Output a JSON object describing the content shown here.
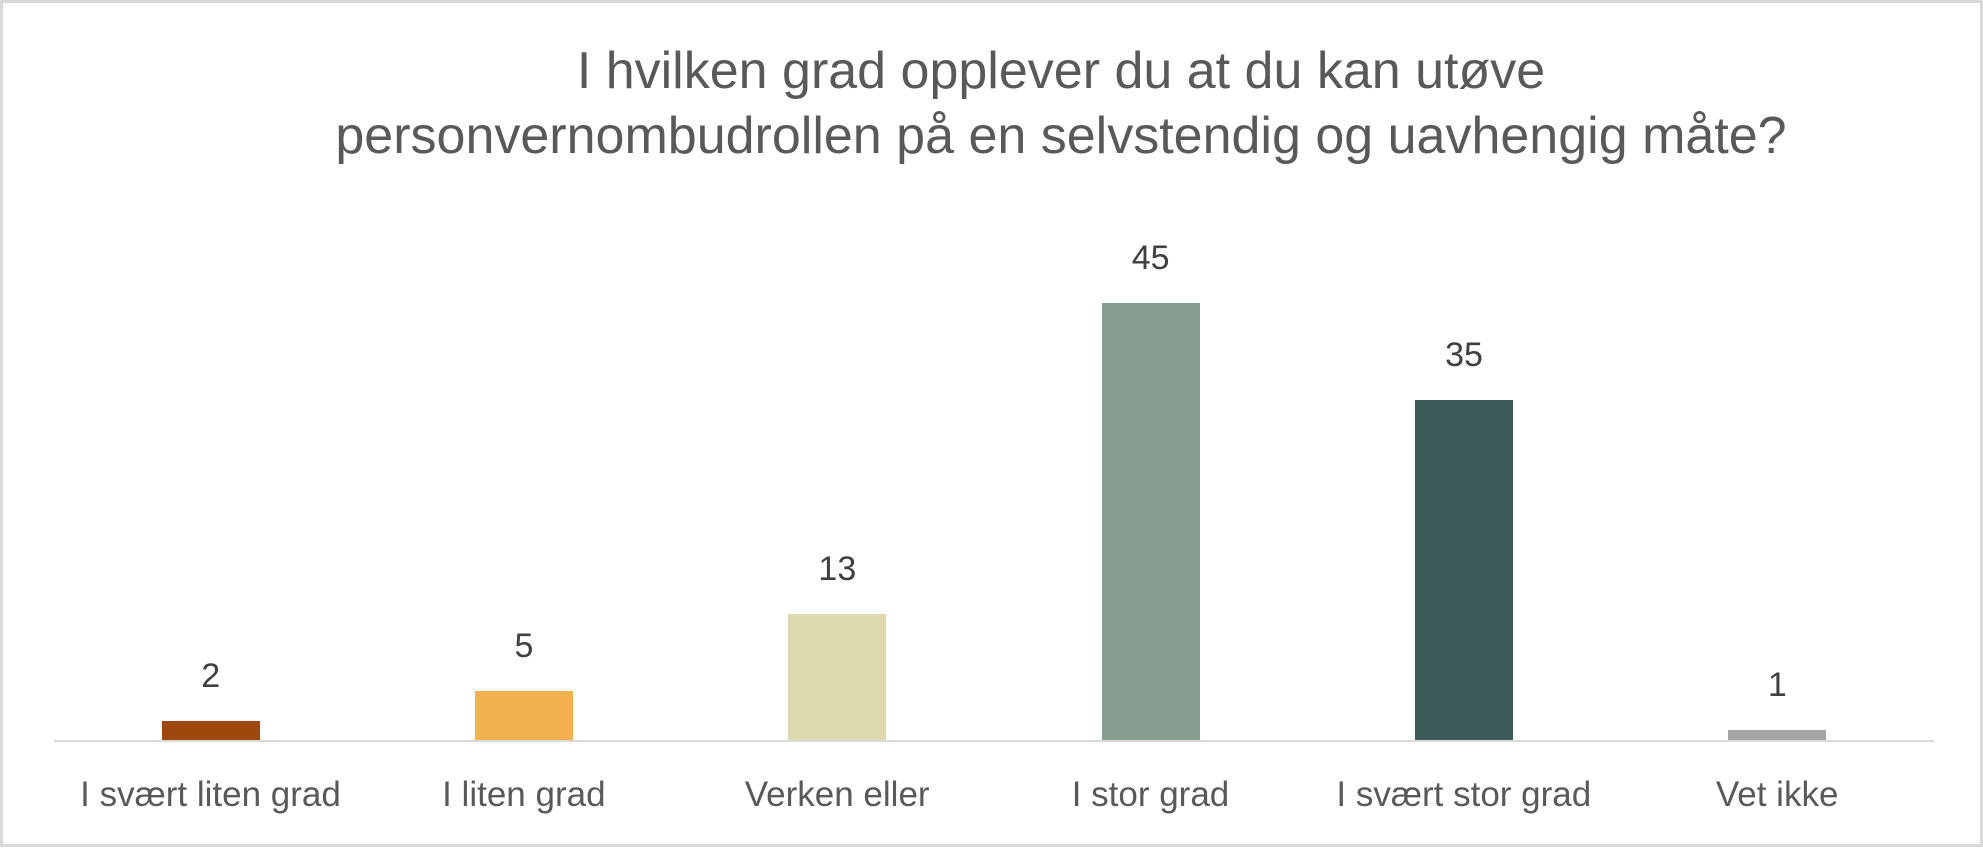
{
  "chart": {
    "title_lines": [
      "I hvilken grad opplever du at du kan utøve",
      "personvernombudrollen på en selvstendig og uavhengig måte?"
    ],
    "frame_border_color": "#d9d9d9",
    "axis_color": "#d9d9d9",
    "text_color": "#595959",
    "data_label_color": "#404040",
    "bars": [
      {
        "category": "I svært liten grad",
        "value": 2,
        "label": "2",
        "color": "#9e480e"
      },
      {
        "category": "I liten grad",
        "value": 5,
        "label": "5",
        "color": "#f3b24f"
      },
      {
        "category": "Verken eller",
        "value": 13,
        "label": "13",
        "color": "#dcd9ae"
      },
      {
        "category": "I stor grad",
        "value": 45,
        "label": "45",
        "color": "#879e90"
      },
      {
        "category": "I svært stor grad",
        "value": 35,
        "label": "35",
        "color": "#3c5a58"
      },
      {
        "category": "Vet ikke",
        "value": 1,
        "label": "1",
        "color": "#a5a5a5"
      }
    ]
  },
  "chart_data": {
    "type": "bar",
    "title": "I hvilken grad opplever du at du kan utøve personvernombudrollen på en selvstendig og uavhengig måte?",
    "categories": [
      "I svært liten grad",
      "I liten grad",
      "Verken eller",
      "I stor grad",
      "I svært stor grad",
      "Vet ikke"
    ],
    "values": [
      2,
      5,
      13,
      45,
      35,
      1
    ],
    "colors": [
      "#9e480e",
      "#f3b24f",
      "#dcd9ae",
      "#879e90",
      "#3c5a58",
      "#a5a5a5"
    ],
    "data_labels": true,
    "xlabel": "",
    "ylabel": "",
    "ylim": [
      0,
      50
    ],
    "y_axis_visible": false,
    "grid": false,
    "legend": null
  }
}
